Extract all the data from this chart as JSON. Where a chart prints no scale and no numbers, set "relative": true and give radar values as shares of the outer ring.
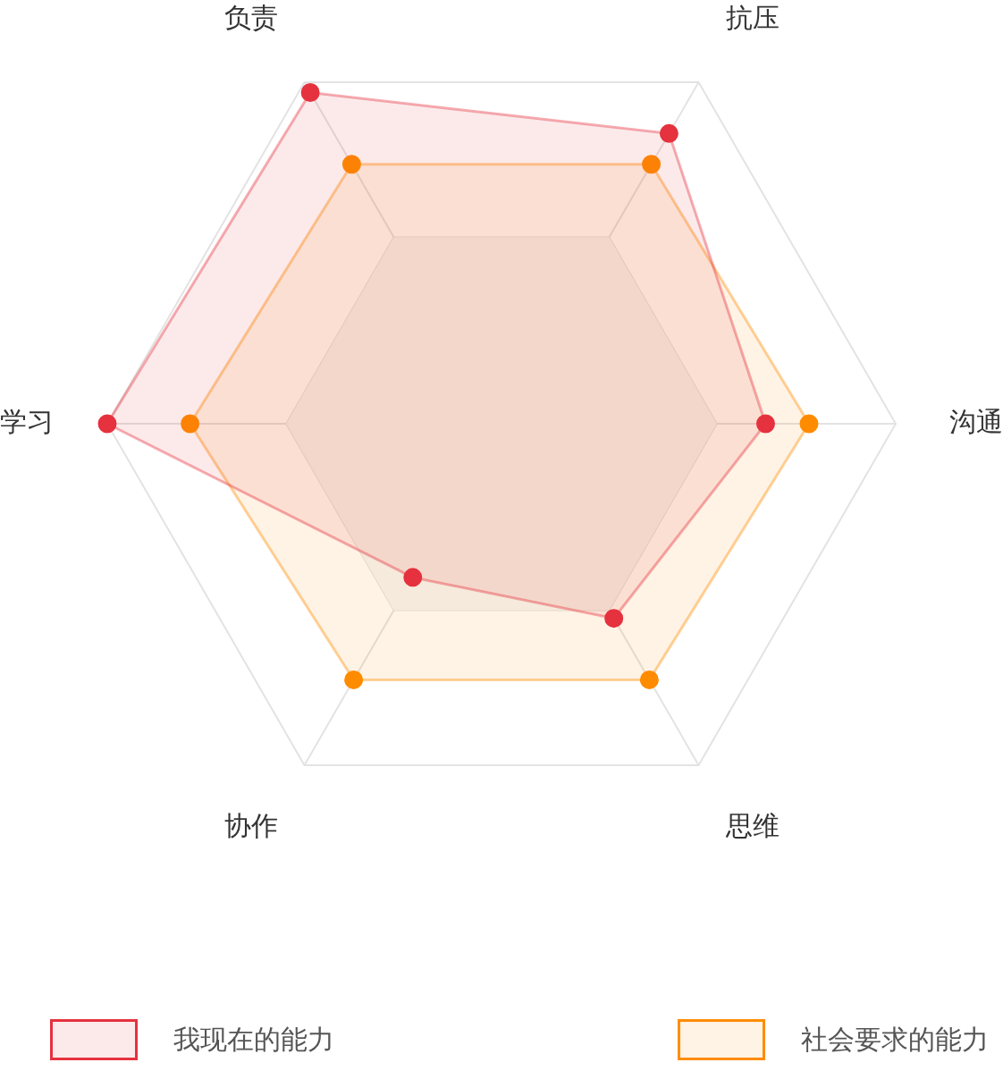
{
  "chart_data": {
    "type": "radar",
    "relative": true,
    "categories": [
      "抗压",
      "沟通",
      "思维",
      "协作",
      "学习",
      "负责"
    ],
    "series": [
      {
        "name": "我现在的能力",
        "color": "#e5323e",
        "values": [
          0.85,
          0.67,
          0.57,
          0.45,
          1.0,
          0.97
        ]
      },
      {
        "name": "社会要求的能力",
        "color": "#ff8c00",
        "values": [
          0.76,
          0.78,
          0.75,
          0.75,
          0.79,
          0.76
        ]
      }
    ],
    "grid": true,
    "legend": "bottom",
    "marker": "circle"
  }
}
